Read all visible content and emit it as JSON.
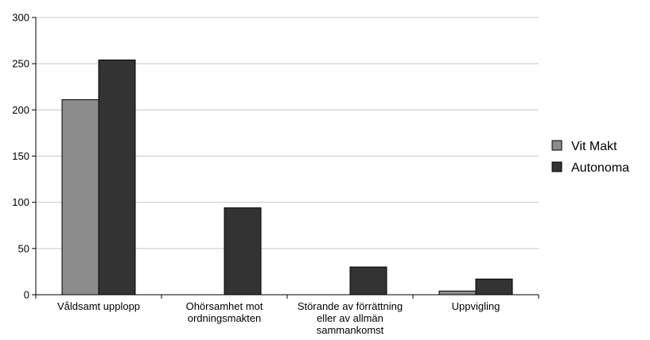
{
  "chart_data": {
    "type": "bar",
    "categories": [
      [
        "Våldsamt upplopp"
      ],
      [
        "Ohörsamhet mot",
        "ordningsmakten"
      ],
      [
        "Störande av förrättning",
        "eller av allmän",
        "sammankomst"
      ],
      [
        "Uppvigling"
      ]
    ],
    "series": [
      {
        "name": "Vit Makt",
        "values": [
          211,
          0,
          0,
          4
        ],
        "color": "#8c8c8c"
      },
      {
        "name": "Autonoma",
        "values": [
          254,
          94,
          30,
          17
        ],
        "color": "#333333"
      }
    ],
    "ylim": [
      0,
      300
    ],
    "yticks": [
      0,
      50,
      100,
      150,
      200,
      250,
      300
    ],
    "grid": true,
    "legend": "right"
  }
}
